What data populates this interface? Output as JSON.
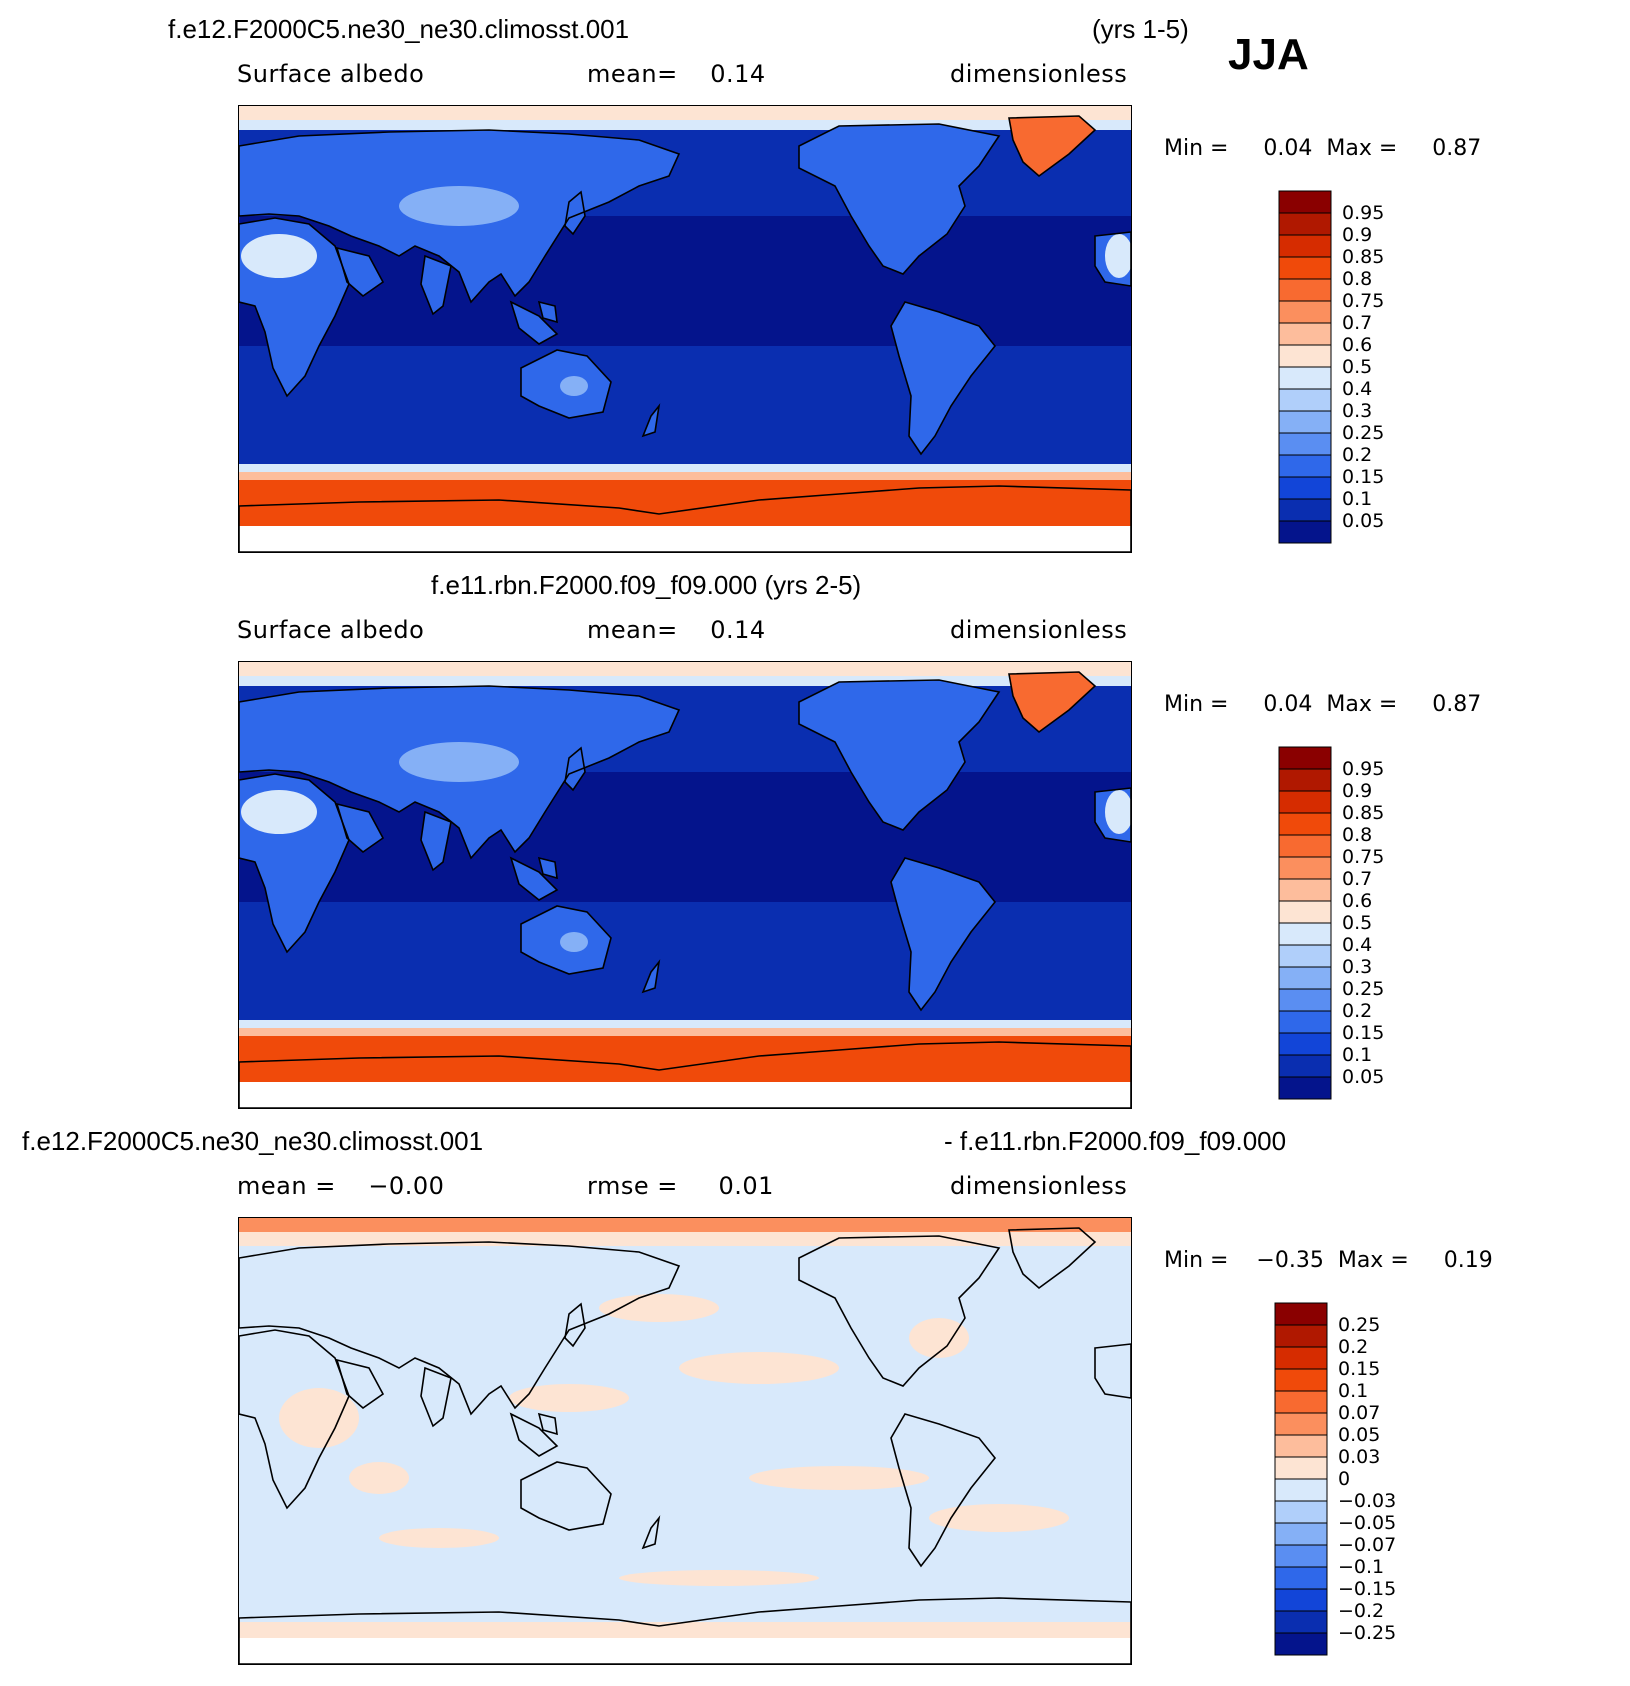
{
  "season": "JJA",
  "panels": [
    {
      "title_left": "f.e12.F2000C5.ne30_ne30.climosst.001",
      "title_right": "(yrs 1-5)",
      "sub_left": "Surface albedo",
      "sub_mid": "mean=    0.14",
      "sub_right": "dimensionless",
      "min_max": "Min =     0.04  Max =     0.87",
      "cbar_labels": [
        "0.95",
        "0.9",
        "0.85",
        "0.8",
        "0.75",
        "0.7",
        "0.6",
        "0.5",
        "0.4",
        "0.3",
        "0.25",
        "0.2",
        "0.15",
        "0.1",
        "0.05"
      ],
      "cbar_colors": [
        "#8a0000",
        "#b01800",
        "#d62c00",
        "#f04a0a",
        "#f86a30",
        "#fb8f5e",
        "#fdbd9c",
        "#fde4d3",
        "#d8e9fb",
        "#b0cffa",
        "#85b0f6",
        "#5a8ef2",
        "#2f68ea",
        "#1245d8",
        "#0a2eb0",
        "#04148c"
      ]
    },
    {
      "title_center": "f.e11.rbn.F2000.f09_f09.000 (yrs 2-5)",
      "sub_left": "Surface albedo",
      "sub_mid": "mean=    0.14",
      "sub_right": "dimensionless",
      "min_max": "Min =     0.04  Max =     0.87",
      "cbar_labels": [
        "0.95",
        "0.9",
        "0.85",
        "0.8",
        "0.75",
        "0.7",
        "0.6",
        "0.5",
        "0.4",
        "0.3",
        "0.25",
        "0.2",
        "0.15",
        "0.1",
        "0.05"
      ],
      "cbar_colors": [
        "#8a0000",
        "#b01800",
        "#d62c00",
        "#f04a0a",
        "#f86a30",
        "#fb8f5e",
        "#fdbd9c",
        "#fde4d3",
        "#d8e9fb",
        "#b0cffa",
        "#85b0f6",
        "#5a8ef2",
        "#2f68ea",
        "#1245d8",
        "#0a2eb0",
        "#04148c"
      ]
    },
    {
      "title_left": "f.e12.F2000C5.ne30_ne30.climosst.001",
      "title_right": "- f.e11.rbn.F2000.f09_f09.000",
      "sub_left": "mean =    −0.00",
      "sub_mid": "rmse =     0.01",
      "sub_right": "dimensionless",
      "min_max": "Min =    −0.35  Max =     0.19",
      "cbar_labels": [
        "0.25",
        "0.2",
        "0.15",
        "0.1",
        "0.07",
        "0.05",
        "0.03",
        "0",
        "−0.03",
        "−0.05",
        "−0.07",
        "−0.1",
        "−0.15",
        "−0.2",
        "−0.25"
      ],
      "cbar_colors": [
        "#8a0000",
        "#b01800",
        "#d62c00",
        "#f04a0a",
        "#f86a30",
        "#fb8f5e",
        "#fdbd9c",
        "#fde4d3",
        "#d8e9fb",
        "#b0cffa",
        "#85b0f6",
        "#5a8ef2",
        "#2f68ea",
        "#1245d8",
        "#0a2eb0",
        "#04148c"
      ]
    }
  ],
  "map_colors": {
    "ocean": "#04148c",
    "ocean_mid": "#0a2eb0",
    "land": "#2f68ea",
    "land_bright": "#85b0f6",
    "desert": "#d8e9fb",
    "sea_ice": "#f04a0a",
    "sea_ice_edge": "#fdbd9c",
    "arctic": "#fde4d3",
    "greenland": "#f86a30",
    "diff_bg": "#d8e9fb",
    "diff_pos": "#fde4d3"
  }
}
